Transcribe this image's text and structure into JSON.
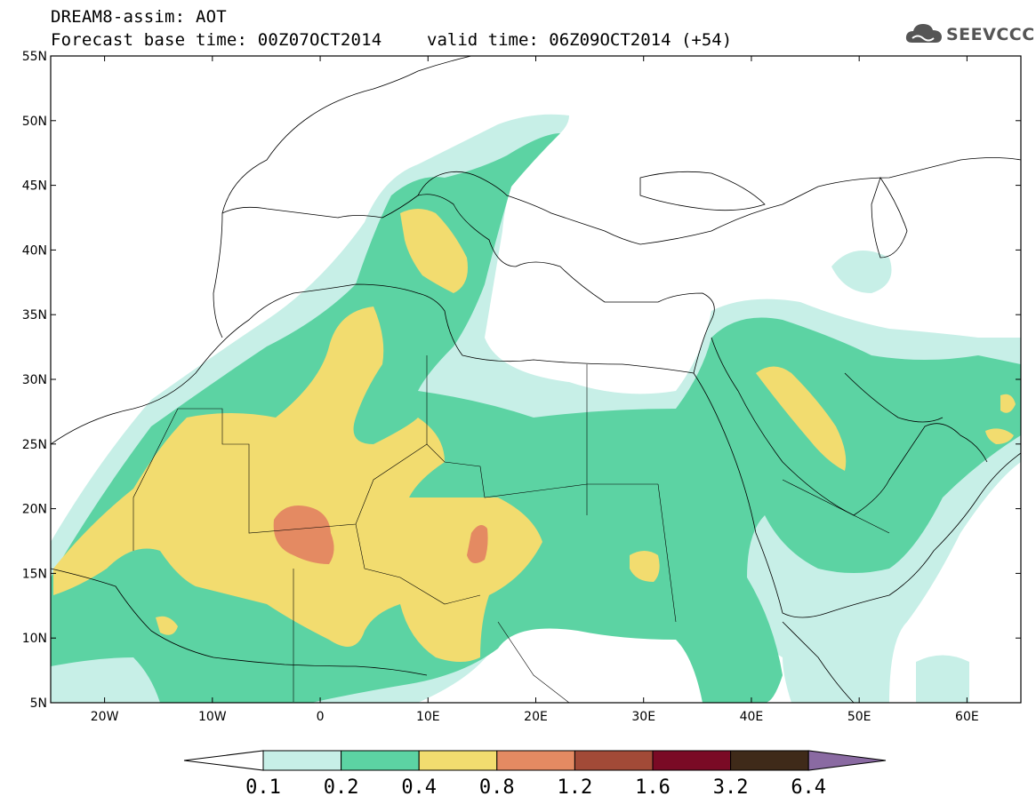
{
  "header": {
    "title": "DREAM8-assim: AOT",
    "forecast_base": "Forecast base time: 00Z07OCT2014",
    "valid_time": "valid time: 06Z09OCT2014 (+54)",
    "logo_text": "SEEVCCC"
  },
  "map": {
    "lat_labels": [
      "55N",
      "50N",
      "45N",
      "40N",
      "35N",
      "30N",
      "25N",
      "20N",
      "15N",
      "10N",
      "5N"
    ],
    "lon_labels": [
      "20W",
      "10W",
      "0",
      "10E",
      "20E",
      "30E",
      "40E",
      "50E",
      "60E"
    ],
    "extent": {
      "lon_min": -25,
      "lon_max": 65,
      "lat_min": 5,
      "lat_max": 55
    },
    "frame_color": "#000000"
  },
  "colorbar": {
    "labels": [
      "0.1",
      "0.2",
      "0.4",
      "0.8",
      "1.2",
      "1.6",
      "3.2",
      "6.4"
    ],
    "colors": [
      "#ffffff",
      "#c7efe7",
      "#5cd3a3",
      "#f2dc6f",
      "#e48a62",
      "#a24a37",
      "#7a0a25",
      "#3f2a19",
      "#8a6aa2"
    ]
  },
  "levels": {
    "l1": "#c7efe7",
    "l2": "#5cd3a3",
    "l3": "#f2dc6f",
    "l4": "#e48a62"
  }
}
